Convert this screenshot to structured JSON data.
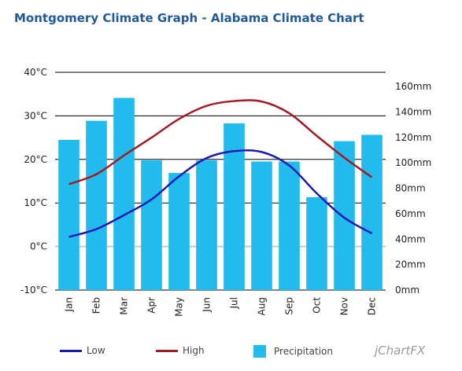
{
  "title": "Montgomery Climate Graph - Alabama Climate Chart",
  "brand": "jChartFX",
  "legend": {
    "low": "Low",
    "high": "High",
    "precipitation": "Precipitation"
  },
  "colors": {
    "low": "#1a1ab0",
    "high": "#a31c24",
    "precipitation": "#22bbee"
  },
  "chart_data": {
    "type": "bar",
    "title": "Montgomery Climate Graph - Alabama Climate Chart",
    "categories": [
      "Jan",
      "Feb",
      "Mar",
      "Apr",
      "May",
      "Jun",
      "Jul",
      "Aug",
      "Sep",
      "Oct",
      "Nov",
      "Dec"
    ],
    "left_axis": {
      "ylim": [
        -10,
        40
      ],
      "ticks": [
        "-10°C",
        "0°C",
        "10°C",
        "20°C",
        "30°C",
        "40°C"
      ],
      "tick_values": [
        -10,
        0,
        10,
        20,
        30,
        40
      ]
    },
    "right_axis": {
      "ylim": [
        0,
        160
      ],
      "ticks": [
        "0mm",
        "20mm",
        "40mm",
        "60mm",
        "80mm",
        "100mm",
        "120mm",
        "140mm",
        "160mm"
      ],
      "tick_values": [
        0,
        20,
        40,
        60,
        80,
        100,
        120,
        140,
        160
      ]
    },
    "grid": true,
    "legend_position": "bottom",
    "series": [
      {
        "name": "Precipitation",
        "type": "bar",
        "axis": "right",
        "values": [
          118,
          133,
          151,
          102,
          92,
          102,
          131,
          101,
          101,
          73,
          117,
          122
        ]
      },
      {
        "name": "Low",
        "type": "line",
        "axis": "left",
        "values": [
          2.2,
          4.0,
          7.2,
          10.8,
          16.1,
          20.3,
          21.9,
          21.7,
          18.6,
          12.2,
          6.6,
          3.0
        ]
      },
      {
        "name": "High",
        "type": "line",
        "axis": "left",
        "values": [
          14.3,
          16.6,
          20.9,
          25.0,
          29.3,
          32.3,
          33.4,
          33.3,
          30.6,
          25.4,
          20.4,
          15.9
        ]
      }
    ]
  }
}
